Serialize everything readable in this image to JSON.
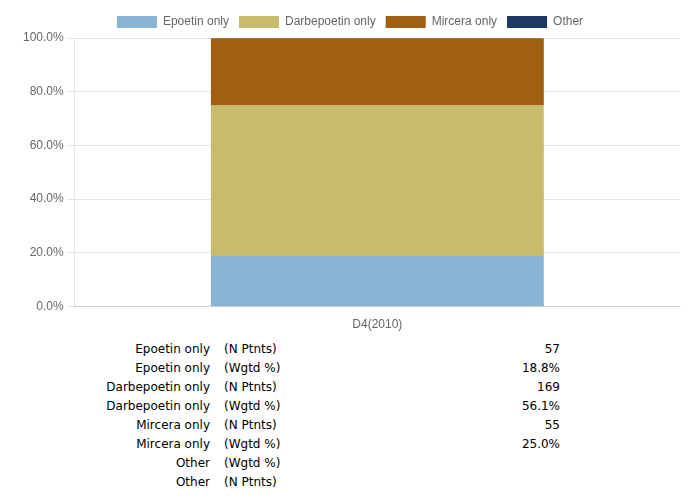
{
  "chart_data": {
    "type": "bar",
    "stacked": true,
    "categories": [
      "D4(2010)"
    ],
    "series": [
      {
        "name": "Epoetin only",
        "color": "#8AB4D4",
        "values": [
          18.8
        ]
      },
      {
        "name": "Darbepoetin only",
        "color": "#C8BC6A",
        "values": [
          56.1
        ]
      },
      {
        "name": "Mircera only",
        "color": "#A06010",
        "values": [
          25.0
        ]
      },
      {
        "name": "Other",
        "color": "#1F3864",
        "values": [
          0.1
        ]
      }
    ],
    "ylim": [
      0,
      100
    ],
    "yticks": [
      {
        "value": 0,
        "label": "0.0%"
      },
      {
        "value": 20,
        "label": "20.0%"
      },
      {
        "value": 40,
        "label": "40.0%"
      },
      {
        "value": 60,
        "label": "60.0%"
      },
      {
        "value": 80,
        "label": "80.0%"
      },
      {
        "value": 100,
        "label": "100.0%"
      }
    ],
    "grid": true,
    "legend": "top",
    "table_rows": [
      {
        "label": "Epoetin only",
        "sublabel": "(N Ptnts)",
        "value": 57
      },
      {
        "label": "Epoetin only",
        "sublabel": "(Wgtd %)",
        "value": {
          "value": 18.8,
          "label": "18.8%"
        }
      },
      {
        "label": "Darbepoetin only",
        "sublabel": "(N Ptnts)",
        "value": 169
      },
      {
        "label": "Darbepoetin only",
        "sublabel": "(Wgtd %)",
        "value": {
          "value": 56.1,
          "label": "56.1%"
        }
      },
      {
        "label": "Mircera only",
        "sublabel": "(N Ptnts)",
        "value": 55
      },
      {
        "label": "Mircera only",
        "sublabel": "(Wgtd %)",
        "value": {
          "value": 25.0,
          "label": "25.0%"
        }
      },
      {
        "label": "Other",
        "sublabel": "(Wgtd %)",
        "value": null
      },
      {
        "label": "Other",
        "sublabel": "(N Ptnts)",
        "value": null
      }
    ]
  }
}
